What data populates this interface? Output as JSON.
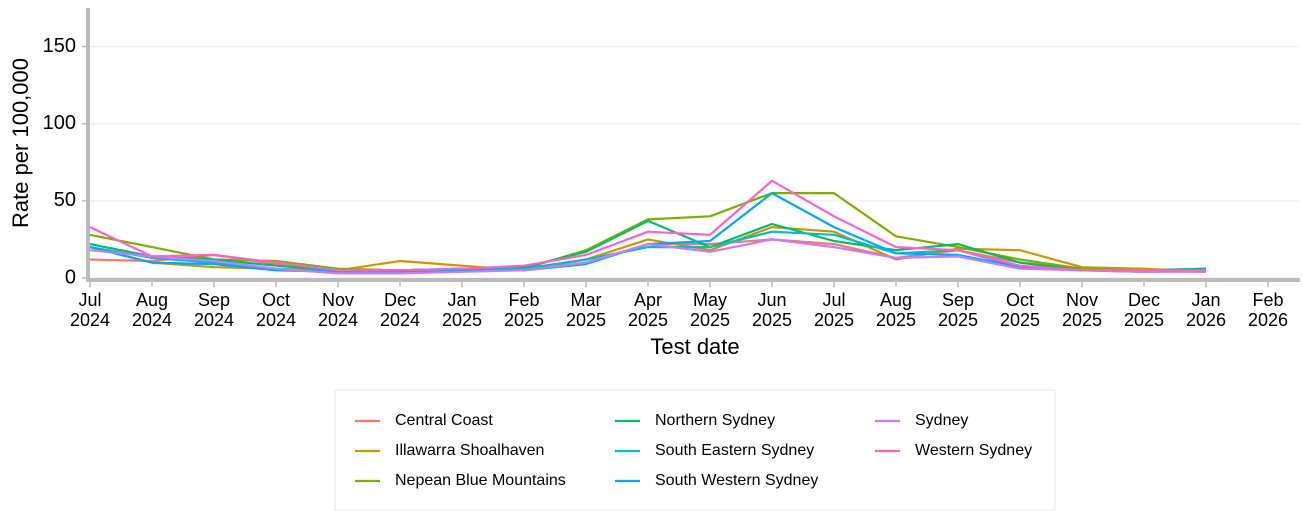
{
  "chart_data": {
    "type": "line",
    "x_label": "Test date",
    "y_label": "Rate per 100,000",
    "x": [
      "2024-07",
      "2024-08",
      "2024-09",
      "2024-10",
      "2024-11",
      "2024-12",
      "2025-01",
      "2025-02",
      "2025-03",
      "2025-04",
      "2025-05",
      "2025-06",
      "2025-07",
      "2025-08",
      "2025-09",
      "2025-10",
      "2025-11",
      "2025-12",
      "2026-01"
    ],
    "xlim": [
      "2024-07",
      "2026-02"
    ],
    "xticks": [
      {
        "value": "2024-07",
        "label": "Jul 2024"
      },
      {
        "value": "2024-08",
        "label": "Aug 2024"
      },
      {
        "value": "2024-09",
        "label": "Sep 2024"
      },
      {
        "value": "2024-10",
        "label": "Oct 2024"
      },
      {
        "value": "2024-11",
        "label": "Nov 2024"
      },
      {
        "value": "2024-12",
        "label": "Dec 2024"
      },
      {
        "value": "2025-01",
        "label": "Jan 2025"
      },
      {
        "value": "2025-02",
        "label": "Feb 2025"
      },
      {
        "value": "2025-03",
        "label": "Mar 2025"
      },
      {
        "value": "2025-04",
        "label": "Apr 2025"
      },
      {
        "value": "2025-05",
        "label": "May 2025"
      },
      {
        "value": "2025-06",
        "label": "Jun 2025"
      },
      {
        "value": "2025-07",
        "label": "Jul 2025"
      },
      {
        "value": "2025-08",
        "label": "Aug 2025"
      },
      {
        "value": "2025-09",
        "label": "Sep 2025"
      },
      {
        "value": "2025-10",
        "label": "Oct 2025"
      },
      {
        "value": "2025-11",
        "label": "Nov 2025"
      },
      {
        "value": "2025-12",
        "label": "Dec 2025"
      },
      {
        "value": "2026-01",
        "label": "Jan 2026"
      },
      {
        "value": "2026-02",
        "label": "Feb 2026"
      }
    ],
    "ylim": [
      0,
      175
    ],
    "yticks": [
      0,
      50,
      100,
      150
    ],
    "grid": true,
    "legend": "bottom",
    "series": [
      {
        "name": "Central Coast",
        "color": "#F8766D",
        "values": [
          12,
          11,
          15,
          9,
          4,
          5,
          6,
          5,
          10,
          22,
          22,
          25,
          22,
          13,
          18,
          10,
          6,
          5,
          4
        ]
      },
      {
        "name": "Illawarra Shoalhaven",
        "color": "#CD9600",
        "values": [
          20,
          10,
          7,
          6,
          5,
          11,
          8,
          5,
          12,
          25,
          18,
          33,
          30,
          12,
          19,
          18,
          7,
          6,
          4
        ]
      },
      {
        "name": "Nepean Blue Mountains",
        "color": "#7CAE00",
        "values": [
          28,
          20,
          12,
          11,
          6,
          5,
          6,
          6,
          18,
          38,
          40,
          55,
          55,
          27,
          20,
          12,
          6,
          5,
          6
        ]
      },
      {
        "name": "Northern Sydney",
        "color": "#00BE67",
        "values": [
          22,
          14,
          12,
          8,
          5,
          5,
          6,
          7,
          17,
          37,
          20,
          35,
          24,
          18,
          22,
          10,
          5,
          5,
          6
        ]
      },
      {
        "name": "South Eastern Sydney",
        "color": "#00BFC4",
        "values": [
          20,
          13,
          10,
          6,
          4,
          4,
          6,
          6,
          12,
          20,
          20,
          30,
          28,
          16,
          18,
          7,
          5,
          4,
          5
        ]
      },
      {
        "name": "South Western Sydney",
        "color": "#00A9FF",
        "values": [
          20,
          10,
          9,
          5,
          4,
          4,
          5,
          5,
          9,
          22,
          24,
          55,
          33,
          16,
          15,
          7,
          5,
          4,
          5
        ]
      },
      {
        "name": "Sydney",
        "color": "#C77CFF",
        "values": [
          18,
          14,
          11,
          6,
          3,
          3,
          4,
          5,
          10,
          22,
          17,
          25,
          20,
          13,
          14,
          6,
          5,
          4,
          4
        ]
      },
      {
        "name": "Western Sydney",
        "color": "#FF61CC",
        "values": [
          33,
          14,
          15,
          10,
          5,
          5,
          6,
          8,
          15,
          30,
          28,
          63,
          40,
          20,
          18,
          8,
          5,
          5,
          5
        ]
      }
    ]
  }
}
